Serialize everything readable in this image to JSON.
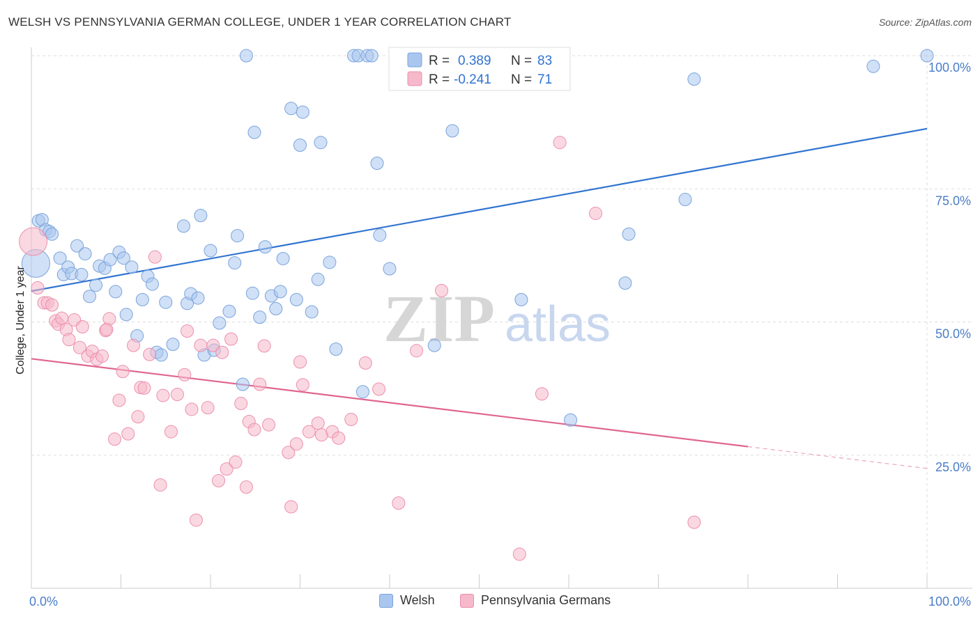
{
  "title": "WELSH VS PENNSYLVANIA GERMAN COLLEGE, UNDER 1 YEAR CORRELATION CHART",
  "source": "Source: ZipAtlas.com",
  "watermark": {
    "zip": "ZIP",
    "atlas": "atlas"
  },
  "colors": {
    "welsh_fill": "#a9c6ee",
    "welsh_stroke": "#7aa3dc",
    "welsh_line": "#2f73d0",
    "pa_fill": "#f6b8cb",
    "pa_stroke": "#ec8fad",
    "pa_line": "#e0658f",
    "grid": "#dddddd",
    "tick_text": "#4a7cc9"
  },
  "legend": {
    "rows": [
      {
        "r_label": "R =",
        "r_value": "0.389",
        "n_label": "N =",
        "n_value": "83"
      },
      {
        "r_label": "R =",
        "r_value": "-0.241",
        "n_label": "N =",
        "n_value": "71"
      }
    ]
  },
  "bottom_legend": {
    "welsh": "Welsh",
    "pa": "Pennsylvania Germans"
  },
  "chart_data": {
    "type": "scatter",
    "title": "WELSH VS PENNSYLVANIA GERMAN COLLEGE, UNDER 1 YEAR CORRELATION CHART",
    "xlabel": "",
    "ylabel": "College, Under 1 year",
    "xlim": [
      0,
      100
    ],
    "ylim": [
      0,
      100
    ],
    "x_tick_labels": [
      "0.0%",
      "100.0%"
    ],
    "y_tick_labels": [
      "25.0%",
      "50.0%",
      "75.0%",
      "100.0%"
    ],
    "y_ticks": [
      25,
      50,
      75,
      100
    ],
    "grid": true,
    "legend_position": "top-center",
    "series": [
      {
        "name": "Welsh",
        "r": 0.389,
        "n": 83,
        "trend": {
          "x": [
            0,
            100
          ],
          "y": [
            55.8,
            86.3
          ]
        },
        "points": [
          [
            0.5,
            61.0,
            2
          ],
          [
            0.8,
            69.0,
            1
          ],
          [
            1.2,
            69.2,
            1
          ],
          [
            1.6,
            67.3,
            1
          ],
          [
            2.0,
            67.0,
            1
          ],
          [
            2.3,
            66.5,
            1
          ],
          [
            3.2,
            62.0,
            1
          ],
          [
            3.6,
            58.9,
            1
          ],
          [
            4.1,
            60.3,
            1
          ],
          [
            4.5,
            59.1,
            1
          ],
          [
            5.1,
            64.3,
            1
          ],
          [
            5.6,
            58.9,
            1
          ],
          [
            6.0,
            62.8,
            1
          ],
          [
            6.5,
            54.8,
            1
          ],
          [
            7.2,
            56.9,
            1
          ],
          [
            7.6,
            60.5,
            1
          ],
          [
            8.2,
            60.1,
            1
          ],
          [
            8.8,
            61.7,
            1
          ],
          [
            9.4,
            55.7,
            1
          ],
          [
            9.8,
            63.1,
            1
          ],
          [
            10.3,
            62.0,
            1
          ],
          [
            10.6,
            51.4,
            1
          ],
          [
            11.2,
            60.3,
            1
          ],
          [
            11.8,
            47.4,
            1
          ],
          [
            12.4,
            54.2,
            1
          ],
          [
            13.0,
            58.6,
            1
          ],
          [
            13.5,
            57.1,
            1
          ],
          [
            14.0,
            44.3,
            1
          ],
          [
            14.5,
            43.8,
            1
          ],
          [
            15.0,
            53.7,
            1
          ],
          [
            15.8,
            45.8,
            1
          ],
          [
            17.0,
            68.0,
            1
          ],
          [
            17.4,
            53.5,
            1
          ],
          [
            17.8,
            55.3,
            1
          ],
          [
            18.6,
            54.5,
            1
          ],
          [
            18.9,
            70.0,
            1
          ],
          [
            19.3,
            43.8,
            1
          ],
          [
            20.0,
            63.4,
            1
          ],
          [
            20.4,
            44.7,
            1
          ],
          [
            21.0,
            49.8,
            1
          ],
          [
            22.1,
            52.0,
            1
          ],
          [
            22.7,
            61.1,
            1
          ],
          [
            23.0,
            66.2,
            1
          ],
          [
            23.6,
            38.3,
            1
          ],
          [
            24.0,
            100.0,
            1
          ],
          [
            24.7,
            55.4,
            1
          ],
          [
            24.9,
            85.6,
            1
          ],
          [
            25.5,
            50.9,
            1
          ],
          [
            26.1,
            64.1,
            1
          ],
          [
            26.8,
            54.9,
            1
          ],
          [
            27.3,
            52.5,
            1
          ],
          [
            27.8,
            55.7,
            1
          ],
          [
            28.1,
            61.9,
            1
          ],
          [
            29.0,
            90.1,
            1
          ],
          [
            29.6,
            54.2,
            1
          ],
          [
            30.0,
            83.2,
            1
          ],
          [
            30.3,
            89.4,
            1
          ],
          [
            31.3,
            51.9,
            1
          ],
          [
            32.0,
            58.0,
            1
          ],
          [
            32.3,
            83.7,
            1
          ],
          [
            33.3,
            61.2,
            1
          ],
          [
            34.0,
            44.9,
            1
          ],
          [
            36.0,
            100.0,
            1
          ],
          [
            36.5,
            100.0,
            1
          ],
          [
            37.0,
            36.9,
            1
          ],
          [
            37.5,
            100.0,
            1
          ],
          [
            38.0,
            100.0,
            1
          ],
          [
            38.6,
            79.8,
            1
          ],
          [
            38.9,
            66.3,
            1
          ],
          [
            40.0,
            60.0,
            1
          ],
          [
            41.0,
            100.0,
            1
          ],
          [
            45.0,
            45.6,
            1
          ],
          [
            47.0,
            85.9,
            1
          ],
          [
            54.7,
            54.2,
            1
          ],
          [
            60.2,
            31.6,
            1
          ],
          [
            66.3,
            57.3,
            1
          ],
          [
            66.7,
            66.5,
            1
          ],
          [
            74.0,
            95.6,
            1
          ],
          [
            73.0,
            73.0,
            1
          ],
          [
            94.0,
            98.0,
            1
          ],
          [
            100.0,
            100.0,
            1
          ]
        ]
      },
      {
        "name": "Pennsylvania Germans",
        "r": -0.241,
        "n": 71,
        "trend": {
          "x": [
            0,
            80
          ],
          "y": [
            43.1,
            26.6
          ]
        },
        "trend_dashed": {
          "x": [
            80,
            100
          ],
          "y": [
            26.6,
            22.5
          ]
        },
        "points": [
          [
            0.2,
            65.1,
            2
          ],
          [
            0.7,
            56.4,
            1
          ],
          [
            1.4,
            53.6,
            1
          ],
          [
            1.8,
            53.6,
            1
          ],
          [
            2.3,
            53.2,
            1
          ],
          [
            2.7,
            50.2,
            1
          ],
          [
            3.0,
            49.6,
            1
          ],
          [
            3.4,
            50.7,
            1
          ],
          [
            3.9,
            48.6,
            1
          ],
          [
            4.2,
            46.7,
            1
          ],
          [
            4.8,
            50.4,
            1
          ],
          [
            5.4,
            45.2,
            1
          ],
          [
            5.7,
            49.1,
            1
          ],
          [
            6.3,
            43.6,
            1
          ],
          [
            6.8,
            44.5,
            1
          ],
          [
            7.3,
            43.0,
            1
          ],
          [
            7.9,
            43.6,
            1
          ],
          [
            8.3,
            48.4,
            1
          ],
          [
            8.7,
            50.6,
            1
          ],
          [
            9.3,
            28.0,
            1
          ],
          [
            9.8,
            35.3,
            1
          ],
          [
            10.2,
            40.7,
            1
          ],
          [
            10.8,
            29.0,
            1
          ],
          [
            11.4,
            45.6,
            1
          ],
          [
            11.9,
            32.2,
            1
          ],
          [
            12.2,
            37.7,
            1
          ],
          [
            12.6,
            37.6,
            1
          ],
          [
            13.2,
            43.9,
            1
          ],
          [
            13.8,
            62.2,
            1
          ],
          [
            14.4,
            19.4,
            1
          ],
          [
            14.7,
            36.2,
            1
          ],
          [
            15.6,
            29.4,
            1
          ],
          [
            16.3,
            36.4,
            1
          ],
          [
            17.1,
            40.1,
            1
          ],
          [
            17.4,
            48.3,
            1
          ],
          [
            17.9,
            33.6,
            1
          ],
          [
            18.4,
            12.8,
            1
          ],
          [
            18.9,
            45.6,
            1
          ],
          [
            19.7,
            33.9,
            1
          ],
          [
            20.3,
            45.6,
            1
          ],
          [
            20.9,
            20.2,
            1
          ],
          [
            21.3,
            44.3,
            1
          ],
          [
            21.8,
            22.4,
            1
          ],
          [
            22.3,
            46.8,
            1
          ],
          [
            22.8,
            23.7,
            1
          ],
          [
            23.4,
            34.7,
            1
          ],
          [
            24.0,
            19.0,
            1
          ],
          [
            24.3,
            31.3,
            1
          ],
          [
            24.9,
            29.8,
            1
          ],
          [
            25.5,
            38.3,
            1
          ],
          [
            26.0,
            45.5,
            1
          ],
          [
            26.5,
            30.7,
            1
          ],
          [
            28.7,
            25.5,
            1
          ],
          [
            29.0,
            15.3,
            1
          ],
          [
            29.6,
            27.1,
            1
          ],
          [
            30.0,
            42.5,
            1
          ],
          [
            30.3,
            38.2,
            1
          ],
          [
            31.0,
            29.4,
            1
          ],
          [
            32.0,
            31.0,
            1
          ],
          [
            32.4,
            28.8,
            1
          ],
          [
            33.6,
            29.4,
            1
          ],
          [
            34.3,
            28.2,
            1
          ],
          [
            35.7,
            31.7,
            1
          ],
          [
            37.3,
            42.3,
            1
          ],
          [
            38.8,
            37.4,
            1
          ],
          [
            41.0,
            16.0,
            1
          ],
          [
            43.0,
            44.6,
            1
          ],
          [
            45.8,
            55.9,
            1
          ],
          [
            54.5,
            6.4,
            1
          ],
          [
            57.0,
            36.5,
            1
          ],
          [
            59.0,
            83.7,
            1
          ],
          [
            63.0,
            70.4,
            1
          ],
          [
            74.0,
            12.4,
            1
          ],
          [
            8.4,
            48.6,
            1
          ]
        ]
      }
    ]
  }
}
